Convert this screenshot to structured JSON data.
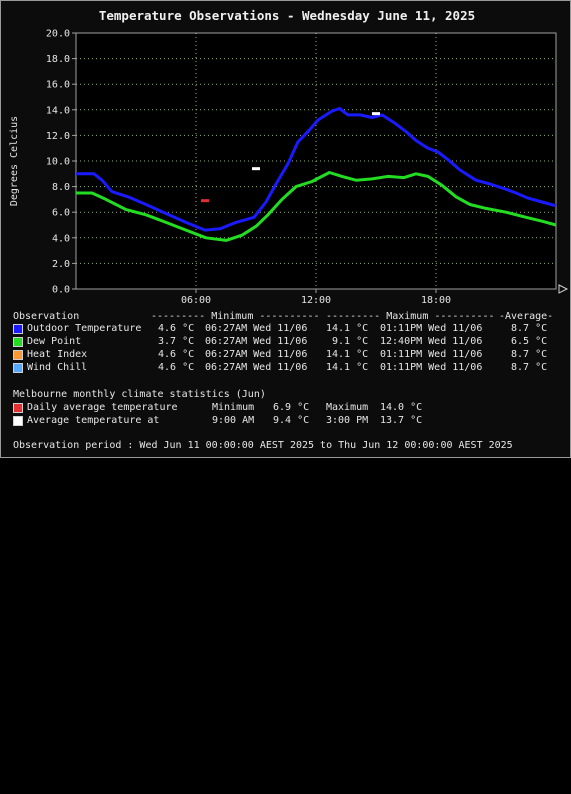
{
  "chart_data": {
    "type": "line",
    "title": "Temperature Observations - Wednesday June 11, 2025",
    "ylabel": "Degrees Celcius",
    "xlabel": "",
    "xlim": [
      0,
      24
    ],
    "ylim": [
      0,
      20
    ],
    "y_ticks": [
      "0.0",
      "2.0",
      "4.0",
      "6.0",
      "8.0",
      "10.0",
      "12.0",
      "14.0",
      "16.0",
      "18.0",
      "20.0"
    ],
    "x_ticks": [
      {
        "hour": 6,
        "label": "06:00"
      },
      {
        "hour": 12,
        "label": "12:00"
      },
      {
        "hour": 18,
        "label": "18:00"
      }
    ],
    "grid": true,
    "series": [
      {
        "name": "Outdoor Temperature",
        "color": "#1a1aff",
        "points": [
          [
            0,
            9.0
          ],
          [
            0.9,
            9.0
          ],
          [
            1.3,
            8.5
          ],
          [
            1.8,
            7.6
          ],
          [
            2.6,
            7.2
          ],
          [
            3.5,
            6.6
          ],
          [
            4.5,
            5.9
          ],
          [
            5.5,
            5.2
          ],
          [
            6.45,
            4.6
          ],
          [
            7.2,
            4.7
          ],
          [
            8.0,
            5.2
          ],
          [
            8.9,
            5.6
          ],
          [
            9.5,
            6.8
          ],
          [
            10.0,
            8.2
          ],
          [
            10.6,
            9.8
          ],
          [
            11.1,
            11.5
          ],
          [
            11.6,
            12.3
          ],
          [
            12.1,
            13.2
          ],
          [
            12.8,
            13.9
          ],
          [
            13.18,
            14.1
          ],
          [
            13.6,
            13.6
          ],
          [
            14.2,
            13.6
          ],
          [
            14.8,
            13.4
          ],
          [
            15.3,
            13.6
          ],
          [
            15.9,
            13.0
          ],
          [
            16.5,
            12.3
          ],
          [
            17.0,
            11.6
          ],
          [
            17.6,
            11.0
          ],
          [
            18.1,
            10.7
          ],
          [
            18.6,
            10.1
          ],
          [
            19.2,
            9.3
          ],
          [
            20.0,
            8.5
          ],
          [
            20.7,
            8.2
          ],
          [
            21.5,
            7.8
          ],
          [
            22.0,
            7.5
          ],
          [
            22.6,
            7.1
          ],
          [
            23.3,
            6.8
          ],
          [
            24,
            6.5
          ]
        ]
      },
      {
        "name": "Dew Point",
        "color": "#22dd22",
        "points": [
          [
            0,
            7.5
          ],
          [
            0.8,
            7.5
          ],
          [
            1.5,
            7.0
          ],
          [
            2.5,
            6.2
          ],
          [
            3.5,
            5.8
          ],
          [
            4.5,
            5.2
          ],
          [
            5.5,
            4.6
          ],
          [
            6.5,
            4.0
          ],
          [
            7.5,
            3.8
          ],
          [
            8.3,
            4.2
          ],
          [
            9.0,
            4.9
          ],
          [
            9.6,
            5.8
          ],
          [
            10.3,
            7.0
          ],
          [
            11.0,
            8.0
          ],
          [
            11.8,
            8.4
          ],
          [
            12.67,
            9.1
          ],
          [
            13.3,
            8.8
          ],
          [
            14.0,
            8.5
          ],
          [
            14.8,
            8.6
          ],
          [
            15.6,
            8.8
          ],
          [
            16.4,
            8.7
          ],
          [
            17.0,
            9.0
          ],
          [
            17.6,
            8.8
          ],
          [
            18.3,
            8.1
          ],
          [
            19.0,
            7.2
          ],
          [
            19.7,
            6.6
          ],
          [
            20.5,
            6.3
          ],
          [
            21.5,
            6.0
          ],
          [
            22.5,
            5.6
          ],
          [
            23.3,
            5.3
          ],
          [
            24,
            5.0
          ]
        ]
      }
    ],
    "markers": [
      {
        "name": "Daily average temperature",
        "color": "#e03030",
        "x": 6.45,
        "y": 6.9
      },
      {
        "name": "Average temperature at",
        "color": "#ffffff",
        "x": 9.0,
        "y": 9.4
      },
      {
        "name": "Average temperature at",
        "color": "#ffffff",
        "x": 15.0,
        "y": 13.7
      }
    ]
  },
  "stats": {
    "header": {
      "label": "Observation",
      "minimum": "--------- Minimum ----------",
      "maximum": "--------- Maximum ----------",
      "average": "-Average-"
    },
    "rows": [
      {
        "name": "Outdoor Temperature",
        "color": "#1a1aff",
        "min_val": "4.6 °C",
        "min_time": "06:27AM Wed 11/06",
        "max_val": "14.1 °C",
        "max_time": "01:11PM Wed 11/06",
        "avg": "8.7 °C"
      },
      {
        "name": "Dew Point",
        "color": "#22dd22",
        "min_val": "3.7 °C",
        "min_time": "06:27AM Wed 11/06",
        "max_val": "9.1 °C",
        "max_time": "12:40PM Wed 11/06",
        "avg": "6.5 °C"
      },
      {
        "name": "Heat Index",
        "color": "#ff9933",
        "min_val": "4.6 °C",
        "min_time": "06:27AM Wed 11/06",
        "max_val": "14.1 °C",
        "max_time": "01:11PM Wed 11/06",
        "avg": "8.7 °C"
      },
      {
        "name": "Wind Chill",
        "color": "#55aaff",
        "min_val": "4.6 °C",
        "min_time": "06:27AM Wed 11/06",
        "max_val": "14.1 °C",
        "max_time": "01:11PM Wed 11/06",
        "avg": "8.7 °C"
      }
    ]
  },
  "climate": {
    "title": "Melbourne monthly climate statistics (Jun)",
    "rows": [
      {
        "label": "Daily average temperature",
        "color": "#e03030",
        "col1": "Minimum",
        "col1_val": "6.9 °C",
        "col2": "Maximum",
        "col2_val": "14.0 °C"
      },
      {
        "label": "Average temperature at",
        "color": "#ffffff",
        "col1": "9:00 AM",
        "col1_val": "9.4 °C",
        "col2": "3:00 PM",
        "col2_val": "13.7 °C"
      }
    ]
  },
  "period": "Observation period : Wed Jun 11 00:00:00 AEST 2025 to Thu Jun 12 00:00:00 AEST 2025"
}
